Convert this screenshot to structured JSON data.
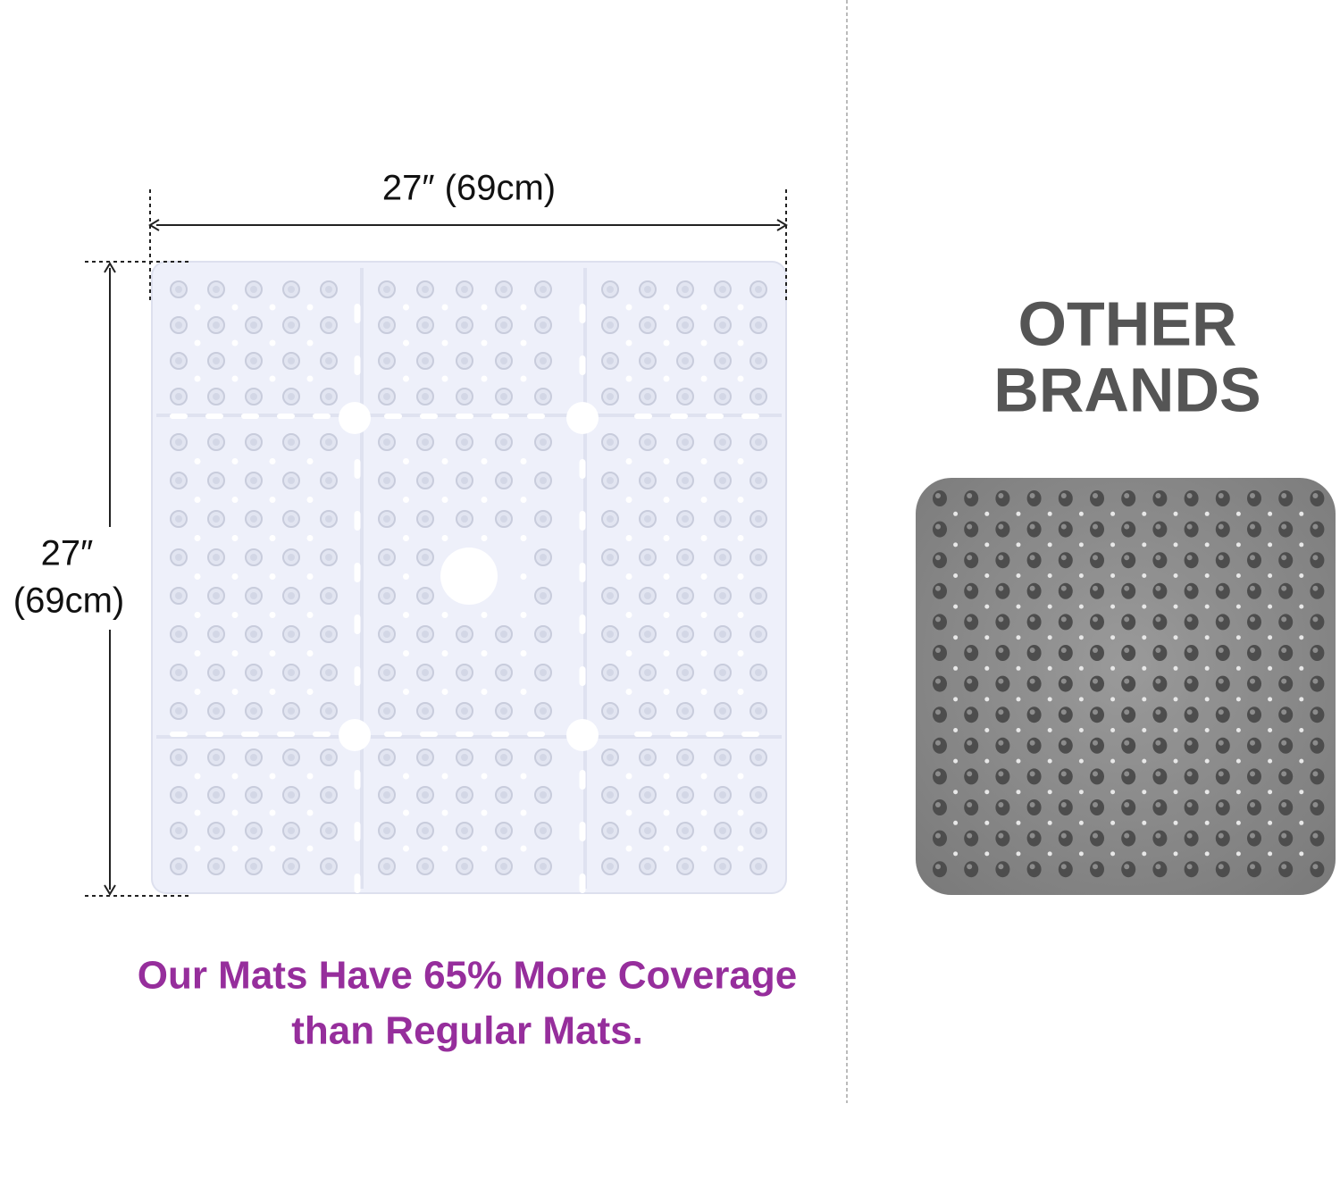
{
  "our_mat": {
    "width_label": "27″ (69cm)",
    "height_label": [
      "27″",
      "(69cm)"
    ],
    "caption": [
      "Our Mats Have 65% More Coverage",
      "than Regular Mats."
    ]
  },
  "other_brands": {
    "title": [
      "OTHER",
      "BRANDS"
    ]
  }
}
